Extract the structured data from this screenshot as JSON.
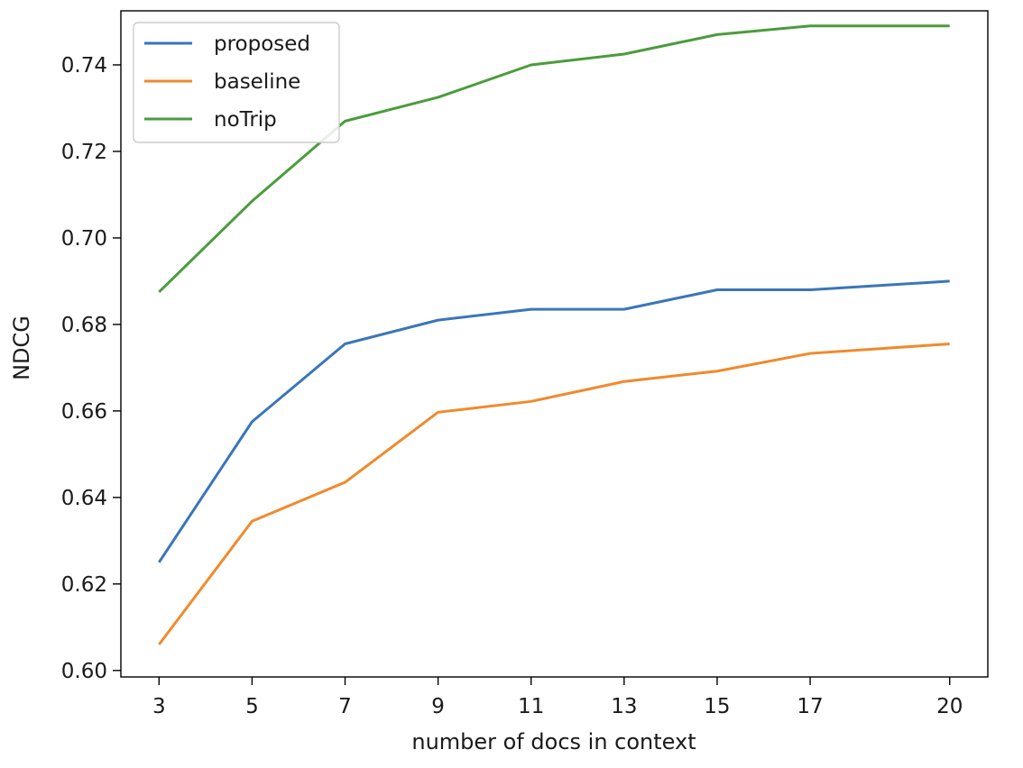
{
  "chart_data": {
    "type": "line",
    "title": "",
    "xlabel": "number of docs in context",
    "ylabel": "NDCG",
    "x": [
      3,
      5,
      7,
      9,
      11,
      13,
      15,
      17,
      20
    ],
    "xticks": [
      "3",
      "5",
      "7",
      "9",
      "11",
      "13",
      "15",
      "17",
      "20"
    ],
    "yticks": [
      "0.60",
      "0.62",
      "0.64",
      "0.66",
      "0.68",
      "0.70",
      "0.72",
      "0.74"
    ],
    "ytick_values": [
      0.6,
      0.62,
      0.64,
      0.66,
      0.68,
      0.7,
      0.72,
      0.74
    ],
    "xlim": [
      2.18,
      20.82
    ],
    "ylim": [
      0.5985,
      0.7525
    ],
    "grid": false,
    "legend_position": "upper-left",
    "series": [
      {
        "name": "proposed",
        "color": "#3a76b8",
        "values": [
          0.625,
          0.6575,
          0.6755,
          0.681,
          0.6835,
          0.6835,
          0.688,
          0.688,
          0.69
        ]
      },
      {
        "name": "baseline",
        "color": "#f08a2c",
        "values": [
          0.606,
          0.6345,
          0.6435,
          0.6597,
          0.6622,
          0.6668,
          0.6692,
          0.6733,
          0.6755
        ]
      },
      {
        "name": "noTrip",
        "color": "#4a9c3c",
        "values": [
          0.6875,
          0.7085,
          0.727,
          0.7325,
          0.74,
          0.7425,
          0.747,
          0.749,
          0.749
        ]
      }
    ]
  }
}
